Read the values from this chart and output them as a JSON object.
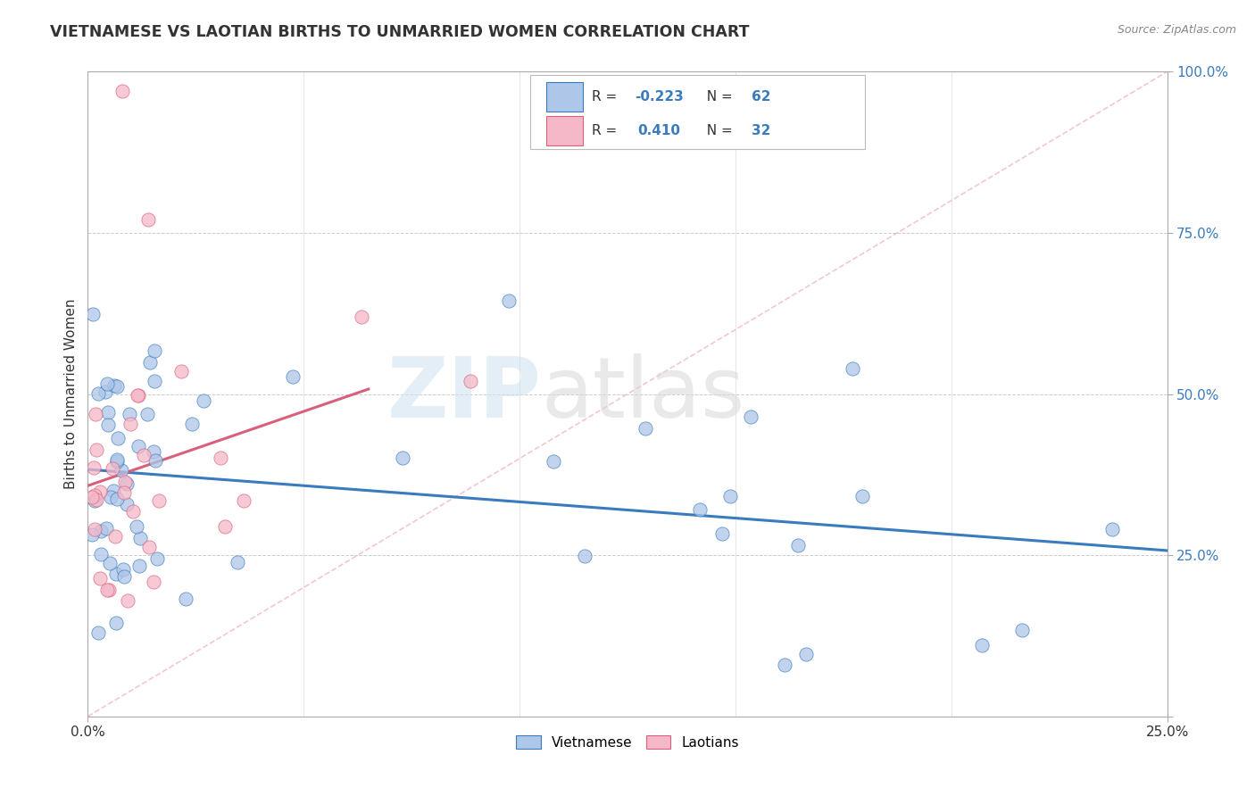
{
  "title": "VIETNAMESE VS LAOTIAN BIRTHS TO UNMARRIED WOMEN CORRELATION CHART",
  "source": "Source: ZipAtlas.com",
  "ylabel": "Births to Unmarried Women",
  "watermark_zip": "ZIP",
  "watermark_atlas": "atlas",
  "blue_color": "#aec6e8",
  "pink_color": "#f5b8c8",
  "blue_line_color": "#3a7bbf",
  "pink_line_color": "#d9607a",
  "diag_color": "#f0b8c8",
  "grid_color": "#cccccc",
  "background_color": "#ffffff",
  "xmin": 0.0,
  "xmax": 0.25,
  "ymin": 0.0,
  "ymax": 1.0,
  "ytick_positions": [
    0.0,
    0.25,
    0.5,
    0.75,
    1.0
  ],
  "ytick_labels": [
    "",
    "25.0%",
    "50.0%",
    "75.0%",
    "100.0%"
  ],
  "r_viet": "-0.223",
  "n_viet": "62",
  "r_laot": "0.410",
  "n_laot": "32",
  "viet_seed": 123,
  "laot_seed": 456
}
